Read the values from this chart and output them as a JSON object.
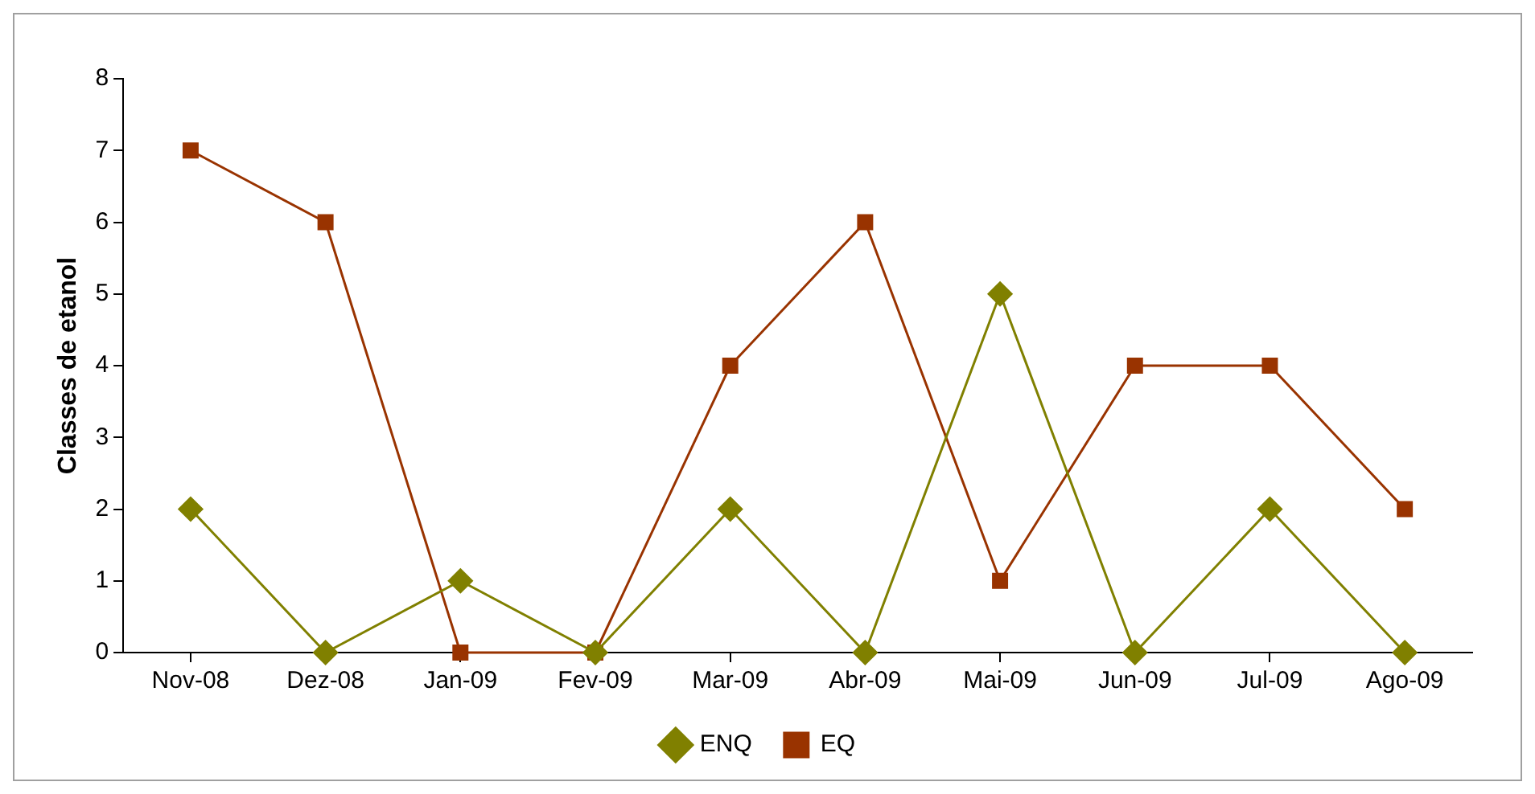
{
  "chart_data": {
    "type": "line",
    "ylabel": "Classes de etanol",
    "categories": [
      "Nov-08",
      "Dez-08",
      "Jan-09",
      "Fev-09",
      "Mar-09",
      "Abr-09",
      "Mai-09",
      "Jun-09",
      "Jul-09",
      "Ago-09"
    ],
    "series": [
      {
        "name": "ENQ",
        "color": "#808000",
        "marker": "diamond",
        "values": [
          2,
          0,
          1,
          0,
          2,
          0,
          5,
          0,
          2,
          0
        ]
      },
      {
        "name": "EQ",
        "color": "#993300",
        "marker": "square",
        "values": [
          7,
          6,
          0,
          0,
          4,
          6,
          1,
          4,
          4,
          2
        ]
      }
    ],
    "ylim": [
      0,
      8
    ],
    "yticks": [
      0,
      1,
      2,
      3,
      4,
      5,
      6,
      7,
      8
    ],
    "grid": false,
    "legend": "bottom",
    "line_style": "solid"
  }
}
